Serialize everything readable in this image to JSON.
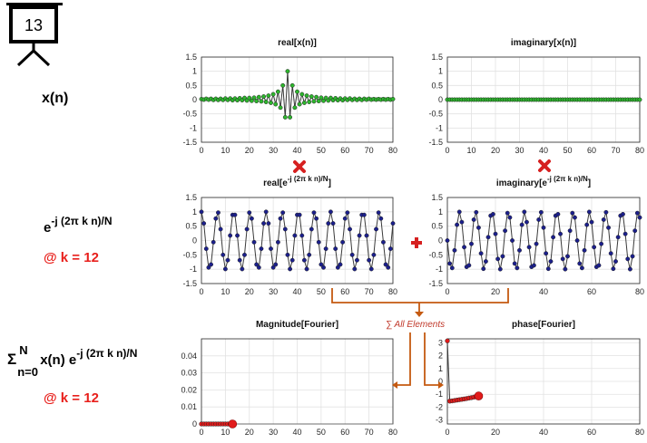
{
  "slide_number": "13",
  "row_labels": {
    "xn": "x(n)",
    "kernel_base": "e",
    "kernel_exp": "-j (2π k n)/N",
    "kernel_k": "@ k = 12",
    "sum_sigma": "Σ",
    "sum_lower": "n=0",
    "sum_upper": "N",
    "sum_body": "x(n) e",
    "sum_exp": "-j (2π k n)/N",
    "sum_k": "@ k = 12"
  },
  "sum_note": "∑ All Elements",
  "colors": {
    "green_marker": "#2db52d",
    "blue_marker": "#1b1f8c",
    "red_marker": "#e21b1b",
    "red_text": "#e8201c",
    "arrow_orange": "#c55a11",
    "line_dark": "#333333"
  },
  "chart_data": [
    {
      "id": "real-x",
      "type": "line",
      "title": "real[x(n)]",
      "x": [
        0,
        1,
        2,
        3,
        4,
        5,
        6,
        7,
        8,
        9,
        10,
        11,
        12,
        13,
        14,
        15,
        16,
        17,
        18,
        19,
        20,
        21,
        22,
        23,
        24,
        25,
        26,
        27,
        28,
        29,
        30,
        31,
        32,
        33,
        34,
        35,
        36,
        37,
        38,
        39,
        40,
        41,
        42,
        43,
        44,
        45,
        46,
        47,
        48,
        49,
        50,
        51,
        52,
        53,
        54,
        55,
        56,
        57,
        58,
        59,
        60,
        61,
        62,
        63,
        64,
        65,
        66,
        67,
        68,
        69,
        70,
        71,
        72,
        73,
        74,
        75,
        76,
        77,
        78,
        79,
        80
      ],
      "y": [
        0.02,
        0.0,
        0.03,
        0.0,
        0.03,
        -0.01,
        0.03,
        -0.01,
        0.03,
        -0.01,
        0.04,
        -0.01,
        0.04,
        -0.02,
        0.04,
        -0.02,
        0.05,
        -0.02,
        0.06,
        -0.03,
        0.06,
        -0.04,
        0.07,
        -0.05,
        0.09,
        -0.06,
        0.11,
        -0.08,
        0.14,
        -0.11,
        0.19,
        -0.16,
        0.28,
        -0.28,
        0.5,
        -0.62,
        1.0,
        -0.62,
        0.5,
        -0.28,
        0.28,
        -0.16,
        0.19,
        -0.11,
        0.14,
        -0.08,
        0.11,
        -0.06,
        0.09,
        -0.05,
        0.07,
        -0.04,
        0.06,
        -0.03,
        0.06,
        -0.02,
        0.05,
        -0.02,
        0.04,
        -0.02,
        0.04,
        -0.01,
        0.04,
        -0.01,
        0.03,
        -0.01,
        0.03,
        -0.01,
        0.03,
        0.0,
        0.03,
        0.0,
        0.02,
        0.0,
        0.02,
        0.0,
        0.02,
        0.0,
        0.02,
        0.0,
        0.02
      ],
      "xlim": [
        0,
        80
      ],
      "ylim": [
        -1.5,
        1.5
      ],
      "xticks": [
        0,
        10,
        20,
        30,
        40,
        50,
        60,
        70,
        80
      ],
      "yticks": [
        1.5,
        1,
        0.5,
        0,
        -0.5,
        -1,
        -1.5
      ],
      "marker_color": "#2db52d",
      "grid": true
    },
    {
      "id": "imag-x",
      "type": "line",
      "title": "imaginary[x(n)]",
      "x_range": [
        0,
        80
      ],
      "y_constant": 0,
      "xlim": [
        0,
        80
      ],
      "ylim": [
        -1.5,
        1.5
      ],
      "xticks": [
        0,
        10,
        20,
        30,
        40,
        50,
        60,
        70,
        80
      ],
      "yticks": [
        1.5,
        1,
        0.5,
        0,
        -0.5,
        -1,
        -1.5
      ],
      "marker_color": "#2db52d",
      "grid": true
    },
    {
      "id": "real-kernel",
      "type": "line",
      "title_base": "real[e",
      "title_sup": "-j (2π k n)/N",
      "title_tail": "]",
      "function": "cos",
      "k": 12,
      "N": 81,
      "xlim": [
        0,
        80
      ],
      "ylim": [
        -1.5,
        1.5
      ],
      "xticks": [
        0,
        10,
        20,
        30,
        40,
        50,
        60,
        70,
        80
      ],
      "yticks": [
        1.5,
        1,
        0.5,
        0,
        -0.5,
        -1,
        -1.5
      ],
      "marker_color": "#1b1f8c",
      "grid": true
    },
    {
      "id": "imag-kernel",
      "type": "line",
      "title_base": "imaginary[e",
      "title_sup": "-j (2π k n)/N",
      "title_tail": "]",
      "function": "-sin",
      "k": 12,
      "N": 81,
      "xlim": [
        0,
        80
      ],
      "ylim": [
        -1.5,
        1.5
      ],
      "xticks": [
        0,
        20,
        40,
        60,
        80
      ],
      "yticks": [
        1.5,
        1,
        0.5,
        0,
        -0.5,
        -1,
        -1.5
      ],
      "marker_color": "#1b1f8c",
      "grid": true
    },
    {
      "id": "magnitude",
      "type": "line",
      "title": "Magnitude[Fourier]",
      "x": [
        0,
        1,
        2,
        3,
        4,
        5,
        6,
        7,
        8,
        9,
        10,
        11,
        12
      ],
      "y": [
        0,
        0,
        0,
        0,
        0,
        0,
        0,
        0,
        0,
        0,
        0,
        0,
        0
      ],
      "extension_to": 80,
      "current_point": [
        13,
        0
      ],
      "xlim": [
        0,
        80
      ],
      "ylim": [
        0,
        0.05
      ],
      "xticks": [
        0,
        10,
        20,
        30,
        40,
        50,
        60,
        70,
        80
      ],
      "yticks": [
        0.04,
        0.03,
        0.02,
        0.01,
        0
      ],
      "marker_color": "#e21b1b",
      "grid": true
    },
    {
      "id": "phase",
      "type": "line",
      "title": "phase[Fourier]",
      "x": [
        0,
        1,
        2,
        3,
        4,
        5,
        6,
        7,
        8,
        9,
        10,
        11,
        12
      ],
      "y": [
        3.14,
        -1.53,
        -1.51,
        -1.48,
        -1.45,
        -1.42,
        -1.39,
        -1.36,
        -1.33,
        -1.29,
        -1.26,
        -1.22,
        -1.18
      ],
      "current_point": [
        13,
        -1.13
      ],
      "xlim": [
        0,
        80
      ],
      "ylim": [
        -3.3,
        3.3
      ],
      "xticks": [
        0,
        20,
        40,
        60,
        80
      ],
      "yticks": [
        3,
        2,
        1,
        0,
        -1,
        -2,
        -3
      ],
      "marker_color": "#e21b1b",
      "grid": true
    }
  ]
}
